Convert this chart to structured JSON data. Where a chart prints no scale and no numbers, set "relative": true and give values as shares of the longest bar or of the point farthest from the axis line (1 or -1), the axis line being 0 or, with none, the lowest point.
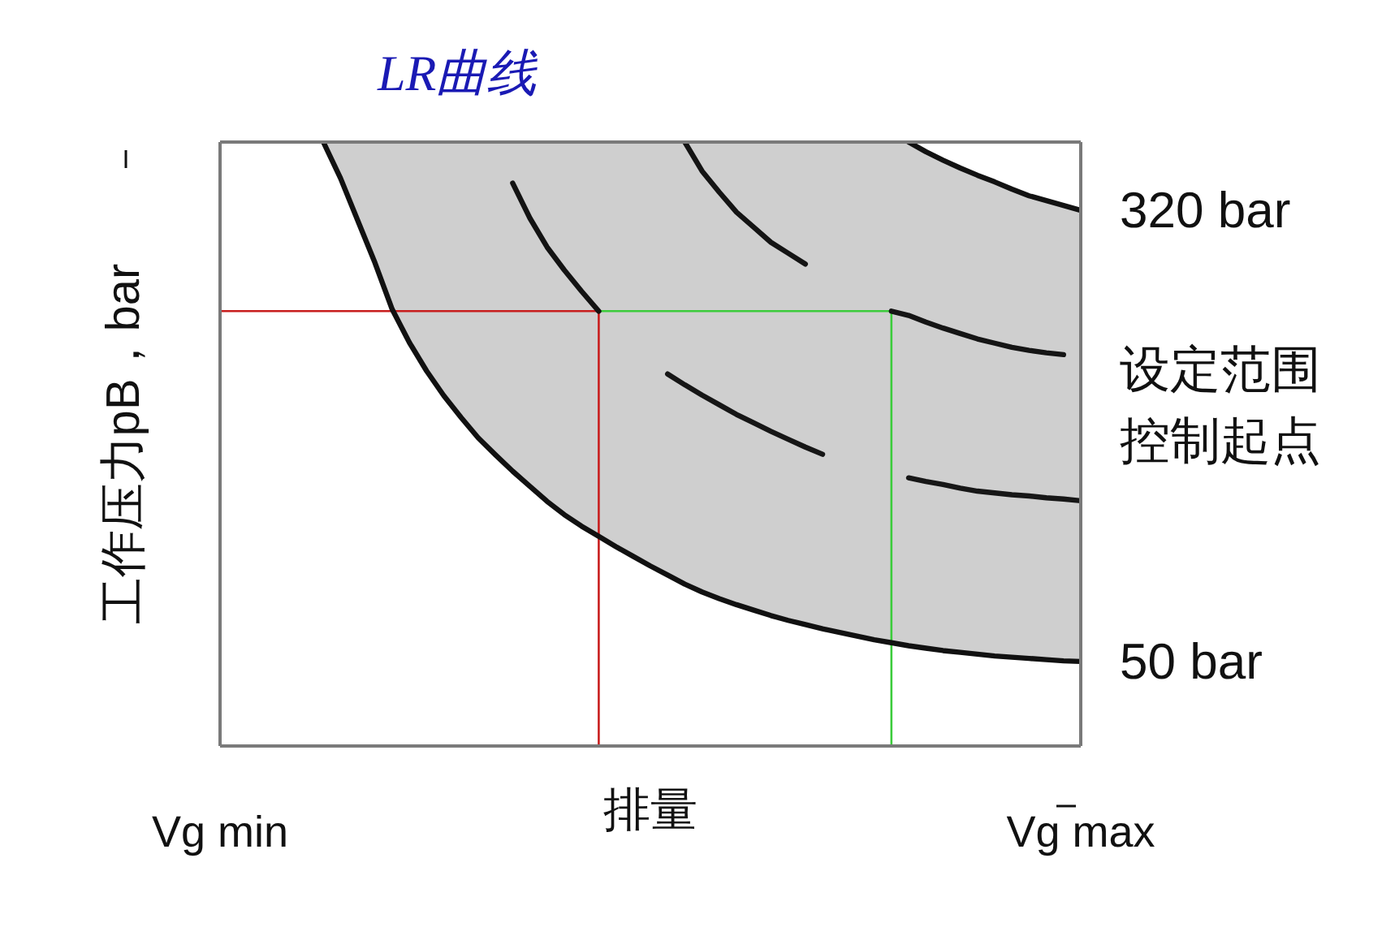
{
  "chart_data": {
    "type": "line",
    "title": "LR曲线",
    "xlabel": "排量",
    "ylabel": "工作压力pB，bar",
    "relative": true,
    "tick_labels": "x",
    "categories": [
      "Vg min",
      null,
      null,
      null,
      null,
      null,
      null,
      null,
      null,
      null,
      null,
      null,
      null,
      null,
      null,
      null,
      null,
      null,
      null,
      null,
      null,
      null,
      null,
      null,
      null,
      null,
      null,
      null,
      null,
      null,
      null,
      null,
      null,
      null,
      null,
      null,
      null,
      null,
      null,
      null,
      null,
      null,
      null,
      null,
      null,
      null,
      null,
      null,
      null,
      null,
      "Vg max"
    ],
    "annotations": [
      "设定范围控制起点"
    ],
    "series": [
      {
        "type": "step",
        "color": "#c81e1e",
        "values": [
          0.72,
          0.72,
          0.72,
          0.72,
          0.72,
          0.72,
          0.72,
          0.72,
          0.72,
          0.72,
          0.72,
          0.72,
          0.72,
          0.72,
          0.72,
          0.72,
          0.72,
          0.72,
          0.72,
          0.72,
          0.72,
          0.72,
          0,
          null,
          null,
          null,
          null,
          null,
          null,
          null,
          null,
          null,
          null,
          null,
          null,
          null,
          null,
          null,
          null,
          null,
          null,
          null,
          null,
          null,
          null,
          null,
          null,
          null,
          null,
          null,
          null
        ]
      },
      {
        "type": "step",
        "color": "#3ccc3c",
        "values": [
          null,
          null,
          null,
          null,
          null,
          null,
          null,
          null,
          null,
          null,
          null,
          null,
          null,
          null,
          null,
          null,
          null,
          null,
          null,
          null,
          null,
          null,
          0.72,
          0.72,
          0.72,
          0.72,
          0.72,
          0.72,
          0.72,
          0.72,
          0.72,
          0.72,
          0.72,
          0.72,
          0.72,
          0.72,
          0.72,
          0.72,
          0.72,
          0,
          null,
          null,
          null,
          null,
          null,
          null,
          null,
          null,
          null,
          null,
          null
        ]
      },
      {
        "name": "50 bar",
        "color": "#111111",
        "values": [
          null,
          null,
          null,
          null,
          null,
          null,
          1.0,
          0.94,
          0.87,
          0.8,
          0.723,
          0.668,
          0.621,
          0.58,
          0.544,
          0.51,
          0.482,
          0.455,
          0.43,
          0.405,
          0.383,
          0.364,
          0.347,
          0.33,
          0.314,
          0.298,
          0.283,
          0.268,
          0.255,
          0.244,
          0.234,
          0.225,
          0.216,
          0.208,
          0.201,
          0.194,
          0.188,
          0.182,
          0.176,
          0.171,
          0.166,
          0.162,
          0.158,
          0.155,
          0.152,
          0.149,
          0.147,
          0.145,
          0.143,
          0.141,
          0.14
        ],
        "lower": [
          null,
          null,
          null,
          null,
          null,
          null,
          1.0,
          0.94,
          0.87,
          0.8,
          0.723,
          0.668,
          0.621,
          0.58,
          0.544,
          0.51,
          0.482,
          0.455,
          0.43,
          0.405,
          0.383,
          0.364,
          0.347,
          0.33,
          0.314,
          0.298,
          0.283,
          0.268,
          0.255,
          0.244,
          0.234,
          0.225,
          0.216,
          0.208,
          0.201,
          0.194,
          0.188,
          0.182,
          0.176,
          0.171,
          0.166,
          0.162,
          0.158,
          0.155,
          0.152,
          0.149,
          0.147,
          0.145,
          0.143,
          0.141,
          0.14
        ],
        "upper": [
          null,
          null,
          null,
          null,
          null,
          null,
          1.0,
          1.0,
          1.0,
          1.0,
          1.0,
          1.0,
          1.0,
          1.0,
          1.0,
          1.0,
          1.0,
          1.0,
          1.0,
          1.0,
          1.0,
          1.0,
          1.0,
          1.0,
          1.0,
          1.0,
          1.0,
          1.0,
          1.0,
          1.0,
          1.0,
          1.0,
          1.0,
          1.0,
          1.0,
          1.0,
          1.0,
          1.0,
          1.0,
          1.0,
          1.0,
          0.984,
          0.97,
          0.957,
          0.945,
          0.934,
          0.922,
          0.911,
          0.903,
          0.895,
          0.887
        ]
      },
      {
        "name": "320 bar",
        "color": "#121212",
        "values": [
          null,
          null,
          null,
          null,
          null,
          null,
          null,
          null,
          null,
          null,
          null,
          null,
          null,
          null,
          null,
          null,
          null,
          null,
          null,
          null,
          null,
          null,
          null,
          null,
          null,
          null,
          null,
          null,
          null,
          null,
          null,
          null,
          null,
          null,
          null,
          null,
          null,
          null,
          null,
          null,
          1.0,
          0.984,
          0.97,
          0.957,
          0.945,
          0.934,
          0.922,
          0.911,
          0.903,
          0.895,
          0.887
        ]
      },
      {
        "color": "#131313",
        "values": [
          null,
          null,
          null,
          null,
          null,
          null,
          null,
          null,
          null,
          null,
          null,
          null,
          null,
          null,
          null,
          null,
          null,
          0.932,
          0.874,
          0.826,
          0.788,
          0.753,
          0.72,
          null,
          null,
          null,
          null,
          null,
          null,
          null,
          null,
          null,
          null,
          null,
          null,
          null,
          null,
          null,
          null,
          null,
          null,
          null,
          null,
          null,
          null,
          null,
          null,
          null,
          null,
          null,
          null
        ]
      },
      {
        "color": "#141414",
        "values": [
          null,
          null,
          null,
          null,
          null,
          null,
          null,
          null,
          null,
          null,
          null,
          null,
          null,
          null,
          null,
          null,
          null,
          null,
          null,
          null,
          null,
          null,
          null,
          null,
          null,
          null,
          null,
          1.0,
          0.952,
          0.917,
          0.884,
          0.859,
          0.834,
          0.816,
          0.798,
          null,
          null,
          null,
          null,
          null,
          null,
          null,
          null,
          null,
          null,
          null,
          null,
          null,
          null,
          null,
          null
        ]
      },
      {
        "color": "#151515",
        "values": [
          null,
          null,
          null,
          null,
          null,
          null,
          null,
          null,
          null,
          null,
          null,
          null,
          null,
          null,
          null,
          null,
          null,
          null,
          null,
          null,
          null,
          null,
          null,
          null,
          null,
          null,
          null,
          null,
          null,
          null,
          null,
          null,
          null,
          null,
          null,
          null,
          null,
          null,
          null,
          0.72,
          0.713,
          0.702,
          0.692,
          0.683,
          0.674,
          0.667,
          0.66,
          0.655,
          0.651,
          0.648,
          null
        ]
      },
      {
        "color": "#161616",
        "values": [
          null,
          null,
          null,
          null,
          null,
          null,
          null,
          null,
          null,
          null,
          null,
          null,
          null,
          null,
          null,
          null,
          null,
          null,
          null,
          null,
          null,
          null,
          null,
          null,
          null,
          null,
          0.616,
          0.598,
          0.581,
          0.565,
          0.549,
          0.535,
          0.521,
          0.508,
          0.495,
          0.483,
          null,
          null,
          null,
          null,
          null,
          null,
          null,
          null,
          null,
          null,
          null,
          null,
          null,
          null,
          null
        ]
      },
      {
        "color": "#171717",
        "values": [
          null,
          null,
          null,
          null,
          null,
          null,
          null,
          null,
          null,
          null,
          null,
          null,
          null,
          null,
          null,
          null,
          null,
          null,
          null,
          null,
          null,
          null,
          null,
          null,
          null,
          null,
          null,
          null,
          null,
          null,
          null,
          null,
          null,
          null,
          null,
          null,
          null,
          null,
          null,
          null,
          0.444,
          0.438,
          0.433,
          0.427,
          0.422,
          0.419,
          0.416,
          0.414,
          0.411,
          0.409,
          0.406
        ]
      }
    ]
  }
}
